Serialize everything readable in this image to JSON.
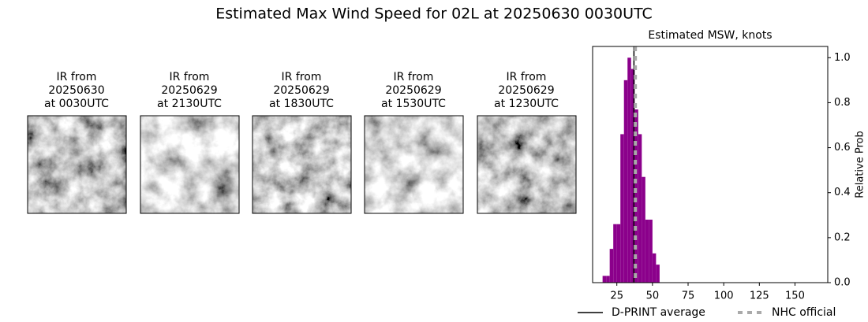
{
  "title": "Estimated Max Wind Speed for 02L at 20250630 0030UTC",
  "panels": [
    {
      "title": [
        "IR from",
        "20250630",
        "at 0030UTC"
      ]
    },
    {
      "title": [
        "IR from",
        "20250629",
        "at 2130UTC"
      ]
    },
    {
      "title": [
        "IR from",
        "20250629",
        "at 1830UTC"
      ]
    },
    {
      "title": [
        "IR from",
        "20250629",
        "at 1530UTC"
      ]
    },
    {
      "title": [
        "IR from",
        "20250629",
        "at 1230UTC"
      ]
    }
  ],
  "chart_data": {
    "type": "histogram",
    "title": "Estimated MSW, knots",
    "y_label": "Relative Prob",
    "bins": [
      15,
      17.5,
      20,
      22.5,
      25,
      27.5,
      30,
      32.5,
      35,
      37.5,
      40,
      42.5,
      45,
      47.5,
      50,
      52.5,
      55
    ],
    "values": [
      0.03,
      0.03,
      0.15,
      0.26,
      0.26,
      0.66,
      0.9,
      1.0,
      0.95,
      0.77,
      0.66,
      0.47,
      0.28,
      0.28,
      0.13,
      0.08
    ],
    "color": "#8b008b",
    "xlim": [
      8,
      173
    ],
    "xticks": [
      25,
      50,
      75,
      100,
      125,
      150
    ],
    "ylim": [
      0,
      1.05
    ],
    "yticks": [
      {
        "value": 0,
        "label": "0.0"
      },
      0.2,
      0.4,
      0.6,
      0.8,
      {
        "value": 1,
        "label": "1.0"
      }
    ],
    "lines": [
      {
        "name": "D-PRINT average",
        "value": 37,
        "color": "#000000",
        "style": "solid"
      },
      {
        "name": "NHC official",
        "value": 38,
        "color": "#aaaaaa",
        "style": "dotted"
      }
    ]
  }
}
